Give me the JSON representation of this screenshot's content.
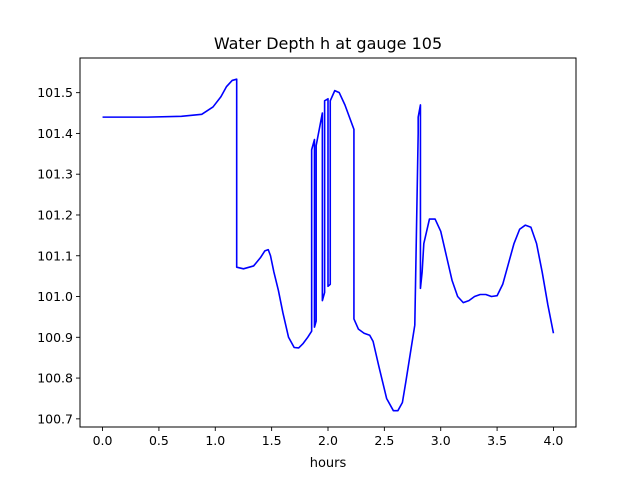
{
  "chart_data": {
    "type": "line",
    "title": "Water Depth h at gauge 105",
    "xlabel": "hours",
    "ylabel": "",
    "xlim": [
      -0.2,
      4.2
    ],
    "ylim": [
      100.68,
      101.585
    ],
    "xticks": [
      0,
      0.5,
      1,
      1.5,
      2,
      2.5,
      3,
      3.5,
      4
    ],
    "xtick_labels": [
      "0.0",
      "0.5",
      "1.0",
      "1.5",
      "2.0",
      "2.5",
      "3.0",
      "3.5",
      "4.0"
    ],
    "yticks": [
      100.7,
      100.8,
      100.9,
      101.0,
      101.1,
      101.2,
      101.3,
      101.4,
      101.5
    ],
    "ytick_labels": [
      "100.7",
      "100.8",
      "100.9",
      "101.0",
      "101.1",
      "101.2",
      "101.3",
      "101.4",
      "101.5"
    ],
    "grid": false,
    "series": [
      {
        "color": "#0000ff",
        "x": [
          0.0,
          0.4,
          0.7,
          0.88,
          0.98,
          1.05,
          1.1,
          1.15,
          1.19,
          1.19,
          1.25,
          1.34,
          1.4,
          1.44,
          1.47,
          1.49,
          1.52,
          1.56,
          1.6,
          1.65,
          1.7,
          1.74,
          1.78,
          1.82,
          1.855,
          1.855,
          1.88,
          1.88,
          1.895,
          1.895,
          1.95,
          1.95,
          1.97,
          1.97,
          2.0,
          2.0,
          2.02,
          2.02,
          2.06,
          2.1,
          2.15,
          2.23,
          2.23,
          2.27,
          2.32,
          2.37,
          2.4,
          2.45,
          2.52,
          2.58,
          2.62,
          2.66,
          2.69,
          2.73,
          2.77,
          2.8,
          2.8,
          2.82,
          2.82,
          2.835,
          2.85,
          2.9,
          2.95,
          3.0,
          3.05,
          3.1,
          3.15,
          3.2,
          3.25,
          3.3,
          3.35,
          3.4,
          3.45,
          3.5,
          3.55,
          3.6,
          3.65,
          3.7,
          3.75,
          3.8,
          3.85,
          3.9,
          3.95,
          4.0
        ],
        "y": [
          101.44,
          101.44,
          101.442,
          101.447,
          101.465,
          101.49,
          101.515,
          101.53,
          101.533,
          101.072,
          101.068,
          101.075,
          101.095,
          101.112,
          101.115,
          101.1,
          101.06,
          101.015,
          100.96,
          100.9,
          100.875,
          100.874,
          100.885,
          100.9,
          100.915,
          101.36,
          101.385,
          100.925,
          100.94,
          101.37,
          101.45,
          100.99,
          101.01,
          101.48,
          101.485,
          101.025,
          101.03,
          101.48,
          101.505,
          101.5,
          101.47,
          101.41,
          100.945,
          100.92,
          100.91,
          100.905,
          100.89,
          100.83,
          100.75,
          100.72,
          100.72,
          100.74,
          100.79,
          100.86,
          100.93,
          101.4,
          101.44,
          101.47,
          101.02,
          101.06,
          101.13,
          101.19,
          101.19,
          101.16,
          101.1,
          101.04,
          101.0,
          100.985,
          100.99,
          101.0,
          101.005,
          101.005,
          101.0,
          101.002,
          101.03,
          101.08,
          101.13,
          101.165,
          101.175,
          101.17,
          101.13,
          101.06,
          100.98,
          100.91
        ]
      }
    ]
  }
}
